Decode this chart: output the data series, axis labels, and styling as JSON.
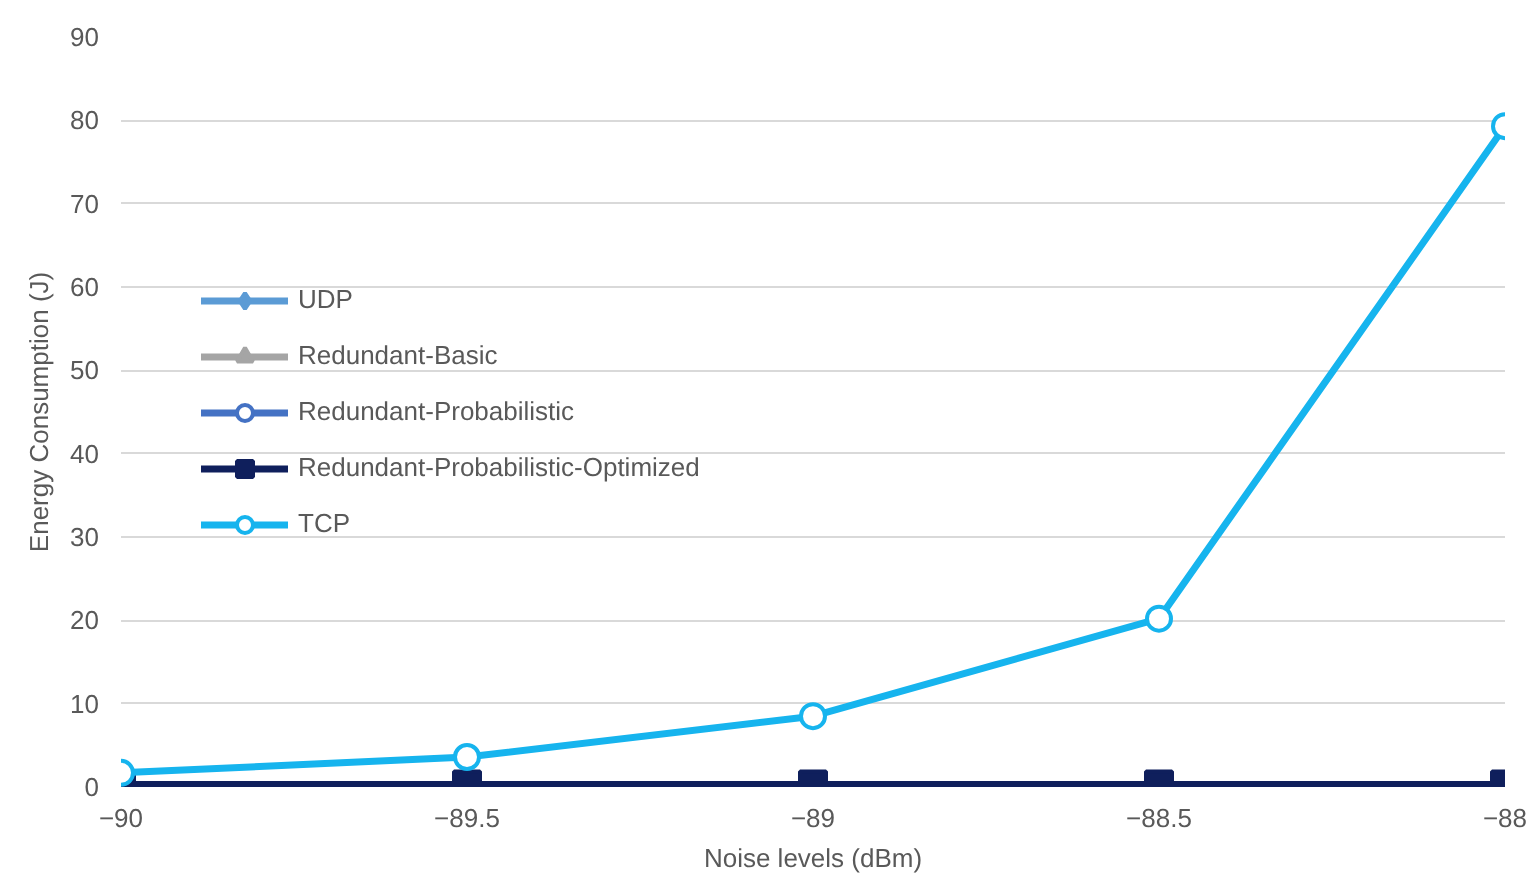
{
  "chart_data": {
    "type": "line",
    "xlabel": "Noise levels (dBm)",
    "ylabel": "Energy Consumption (J)",
    "x": [
      -90,
      -89.5,
      -89,
      -88.5,
      -88
    ],
    "xlim": [
      -90,
      -88
    ],
    "xticks": [
      -90,
      -89.5,
      -89,
      -88.5,
      -88
    ],
    "ylim": [
      0,
      90
    ],
    "yticks": [
      0,
      10,
      20,
      30,
      40,
      50,
      60,
      70,
      80,
      90
    ],
    "grid": "y",
    "legend": "left",
    "series": [
      {
        "name": "UDP",
        "color": "#5b9bd5",
        "marker": "diamond",
        "values": [
          null,
          null,
          null,
          null,
          null
        ]
      },
      {
        "name": "Redundant-Basic",
        "color": "#a5a5a5",
        "marker": "triangle",
        "values": [
          null,
          null,
          null,
          null,
          null
        ]
      },
      {
        "name": "Redundant-Probabilistic",
        "color": "#4472c4",
        "marker": "circle",
        "values": [
          null,
          null,
          null,
          null,
          null
        ]
      },
      {
        "name": "Redundant-Probabilistic-Optimized",
        "color": "#0f1f5c",
        "marker": "square",
        "values": [
          0.3,
          0.3,
          0.3,
          0.3,
          0.3
        ]
      },
      {
        "name": "TCP",
        "color": "#16b4ee",
        "marker": "circle",
        "values": [
          1.7,
          3.6,
          8.5,
          20.2,
          79.3
        ]
      }
    ]
  }
}
